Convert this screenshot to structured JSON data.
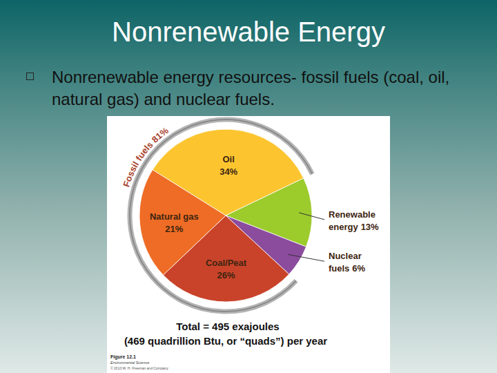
{
  "slide": {
    "title": "Nonrenewable Energy",
    "bullet": "Nonrenewable energy resources- fossil fuels (coal, oil, natural gas) and nuclear fuels."
  },
  "chart_data": {
    "type": "pie",
    "categories": [
      "Oil",
      "Renewable energy",
      "Nuclear fuels",
      "Coal/Peat",
      "Natural gas"
    ],
    "values": [
      34,
      13,
      6,
      26,
      21
    ],
    "value_labels": [
      "34%",
      "13%",
      "6%",
      "26%",
      "21%"
    ],
    "colors": [
      "#fcc530",
      "#9ccb2c",
      "#8c4c9e",
      "#c8432a",
      "#ee6c25"
    ],
    "data_labels": true,
    "group": {
      "label": "Fossil fuels 81%",
      "value": 81,
      "members": [
        "Oil",
        "Coal/Peat",
        "Natural gas"
      ]
    },
    "notes": [
      "Total = 495 exajoules",
      "(469 quadrillion Btu, or “quads”) per year"
    ],
    "source": [
      "Figure 12.1",
      "Environmental Science",
      "© 2013 W. H. Freeman and Company"
    ]
  }
}
